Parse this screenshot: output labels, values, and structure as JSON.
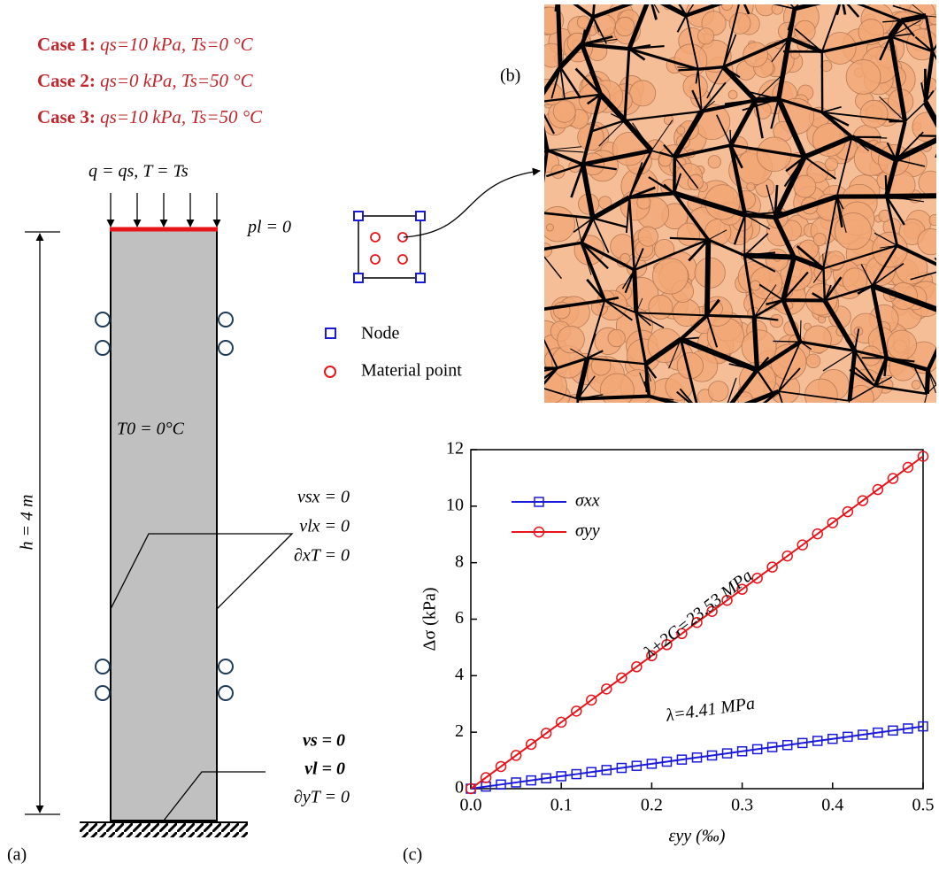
{
  "cases": [
    {
      "label": "Case 1:",
      "text": "qs=10 kPa,  Ts=0 °C"
    },
    {
      "label": "Case 2:",
      "text": "qs=0 kPa, Ts=50 °C"
    },
    {
      "label": "Case 3:",
      "text": "qs=10 kPa,  Ts=50 °C"
    }
  ],
  "panel_a": {
    "label": "(a)",
    "top_load": "q = qs, T = Ts",
    "top_bc": "pl = 0",
    "initial": "T0 = 0°C",
    "side_bc": [
      "vsx = 0",
      "vlx = 0",
      "∂xT = 0"
    ],
    "bottom_bc": [
      "vs = 0",
      "vl = 0",
      "∂yT = 0"
    ],
    "height": "h = 4 m"
  },
  "panel_b": {
    "label": "(b)",
    "legend": [
      "Node",
      "Material point"
    ]
  },
  "chart_data": {
    "type": "line",
    "panel_label": "(c)",
    "xlabel": "εyy (‰)",
    "ylabel": "Δσ (kPa)",
    "x": [
      0,
      0.0167,
      0.0333,
      0.05,
      0.0667,
      0.0833,
      0.1,
      0.1167,
      0.1333,
      0.15,
      0.1667,
      0.1833,
      0.2,
      0.2167,
      0.2333,
      0.25,
      0.2667,
      0.2833,
      0.3,
      0.3167,
      0.3333,
      0.35,
      0.3667,
      0.3833,
      0.4,
      0.4167,
      0.4333,
      0.45,
      0.4667,
      0.4833,
      0.5
    ],
    "series": [
      {
        "name": "σxx",
        "color": "#1a1adc",
        "marker": "square",
        "values": [
          0,
          0.074,
          0.147,
          0.221,
          0.294,
          0.368,
          0.441,
          0.515,
          0.588,
          0.662,
          0.735,
          0.809,
          0.882,
          0.956,
          1.029,
          1.103,
          1.176,
          1.25,
          1.323,
          1.397,
          1.47,
          1.544,
          1.617,
          1.691,
          1.764,
          1.838,
          1.911,
          1.985,
          2.058,
          2.132,
          2.205
        ]
      },
      {
        "name": "σyy",
        "color": "#e8141a",
        "marker": "circle",
        "values": [
          0,
          0.392,
          0.784,
          1.177,
          1.569,
          1.961,
          2.353,
          2.745,
          3.137,
          3.53,
          3.922,
          4.314,
          4.706,
          5.098,
          5.49,
          5.883,
          6.275,
          6.667,
          7.059,
          7.451,
          7.843,
          8.236,
          8.628,
          9.02,
          9.412,
          9.804,
          10.196,
          10.589,
          10.981,
          11.373,
          11.765
        ]
      }
    ],
    "annotations": [
      "λ+2G=23.53 MPa",
      "λ=4.41 MPa"
    ],
    "xlim": [
      0,
      0.5
    ],
    "xticks": [
      {
        "value": 0,
        "label": "0.0"
      },
      0.1,
      0.2,
      0.3,
      0.4,
      0.5
    ],
    "ylim": [
      0,
      12
    ],
    "yticks": [
      0,
      2,
      4,
      6,
      8,
      10,
      12
    ]
  }
}
